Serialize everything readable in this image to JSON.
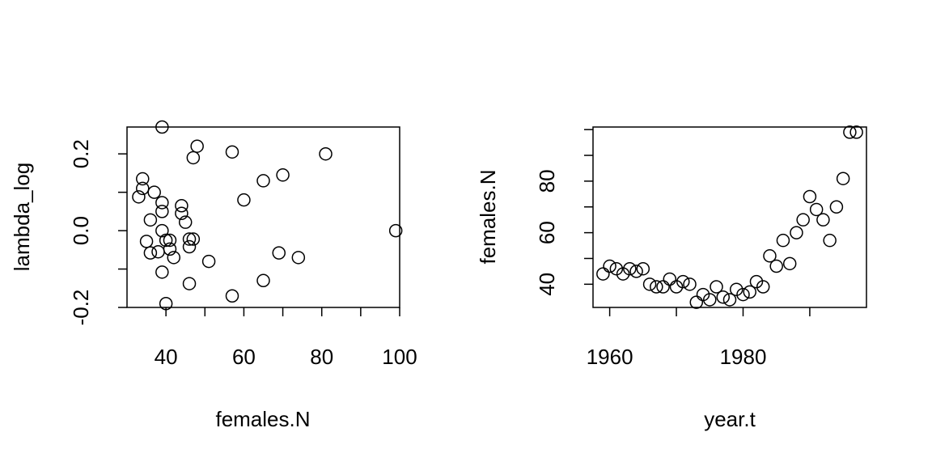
{
  "chart_data": [
    {
      "type": "scatter",
      "title": "",
      "xlabel": "females.N",
      "ylabel": "lambda_log",
      "xlim": [
        30,
        100
      ],
      "ylim": [
        -0.2,
        0.27
      ],
      "x_ticks": [
        40,
        60,
        80,
        100
      ],
      "x_minor_ticks": [
        50,
        70,
        90
      ],
      "y_ticks": [
        -0.2,
        0.0,
        0.2
      ],
      "y_minor_ticks": [
        -0.1,
        0.1
      ],
      "y_tick_labels": [
        "-0.2",
        "0.0",
        "0.2"
      ],
      "grid": false,
      "points": [
        {
          "x": 39,
          "y": 0.27
        },
        {
          "x": 48,
          "y": 0.22
        },
        {
          "x": 57,
          "y": 0.205
        },
        {
          "x": 81,
          "y": 0.2
        },
        {
          "x": 47,
          "y": 0.19
        },
        {
          "x": 70,
          "y": 0.145
        },
        {
          "x": 34,
          "y": 0.135
        },
        {
          "x": 65,
          "y": 0.13
        },
        {
          "x": 34,
          "y": 0.11
        },
        {
          "x": 37,
          "y": 0.1
        },
        {
          "x": 33,
          "y": 0.088
        },
        {
          "x": 60,
          "y": 0.08
        },
        {
          "x": 39,
          "y": 0.073
        },
        {
          "x": 44,
          "y": 0.065
        },
        {
          "x": 39,
          "y": 0.05
        },
        {
          "x": 44,
          "y": 0.045
        },
        {
          "x": 36,
          "y": 0.028
        },
        {
          "x": 45,
          "y": 0.022
        },
        {
          "x": 39,
          "y": 0.0
        },
        {
          "x": 99,
          "y": 0.0
        },
        {
          "x": 46,
          "y": -0.022
        },
        {
          "x": 47,
          "y": -0.022
        },
        {
          "x": 40,
          "y": -0.025
        },
        {
          "x": 41,
          "y": -0.025
        },
        {
          "x": 35,
          "y": -0.028
        },
        {
          "x": 46,
          "y": -0.042
        },
        {
          "x": 41,
          "y": -0.048
        },
        {
          "x": 38,
          "y": -0.055
        },
        {
          "x": 36,
          "y": -0.058
        },
        {
          "x": 69,
          "y": -0.058
        },
        {
          "x": 42,
          "y": -0.07
        },
        {
          "x": 74,
          "y": -0.07
        },
        {
          "x": 51,
          "y": -0.08
        },
        {
          "x": 39,
          "y": -0.108
        },
        {
          "x": 65,
          "y": -0.13
        },
        {
          "x": 46,
          "y": -0.138
        },
        {
          "x": 57,
          "y": -0.17
        },
        {
          "x": 40,
          "y": -0.19
        }
      ]
    },
    {
      "type": "scatter",
      "title": "",
      "xlabel": "year.t",
      "ylabel": "females.N",
      "xlim": [
        1957.5,
        1998.5
      ],
      "ylim": [
        31,
        101
      ],
      "x_ticks": [
        1960,
        1980
      ],
      "x_minor_ticks": [
        1970,
        1990
      ],
      "y_ticks": [
        40,
        60,
        80
      ],
      "y_minor_ticks": [
        50,
        70,
        90,
        100
      ],
      "y_tick_labels": [
        "40",
        "60",
        "80"
      ],
      "grid": false,
      "points": [
        {
          "x": 1959,
          "y": 44
        },
        {
          "x": 1960,
          "y": 47
        },
        {
          "x": 1961,
          "y": 46
        },
        {
          "x": 1962,
          "y": 44
        },
        {
          "x": 1963,
          "y": 46
        },
        {
          "x": 1964,
          "y": 45
        },
        {
          "x": 1965,
          "y": 46
        },
        {
          "x": 1966,
          "y": 40
        },
        {
          "x": 1967,
          "y": 39
        },
        {
          "x": 1968,
          "y": 39
        },
        {
          "x": 1969,
          "y": 42
        },
        {
          "x": 1970,
          "y": 39
        },
        {
          "x": 1971,
          "y": 41
        },
        {
          "x": 1972,
          "y": 40
        },
        {
          "x": 1973,
          "y": 33
        },
        {
          "x": 1974,
          "y": 36
        },
        {
          "x": 1975,
          "y": 34
        },
        {
          "x": 1976,
          "y": 39
        },
        {
          "x": 1977,
          "y": 35
        },
        {
          "x": 1978,
          "y": 34
        },
        {
          "x": 1979,
          "y": 38
        },
        {
          "x": 1980,
          "y": 36
        },
        {
          "x": 1981,
          "y": 37
        },
        {
          "x": 1982,
          "y": 41
        },
        {
          "x": 1983,
          "y": 39
        },
        {
          "x": 1984,
          "y": 51
        },
        {
          "x": 1985,
          "y": 47
        },
        {
          "x": 1986,
          "y": 57
        },
        {
          "x": 1987,
          "y": 48
        },
        {
          "x": 1988,
          "y": 60
        },
        {
          "x": 1989,
          "y": 65
        },
        {
          "x": 1990,
          "y": 74
        },
        {
          "x": 1991,
          "y": 69
        },
        {
          "x": 1992,
          "y": 65
        },
        {
          "x": 1993,
          "y": 57
        },
        {
          "x": 1994,
          "y": 70
        },
        {
          "x": 1995,
          "y": 81
        },
        {
          "x": 1996,
          "y": 99
        },
        {
          "x": 1997,
          "y": 99
        }
      ]
    }
  ]
}
